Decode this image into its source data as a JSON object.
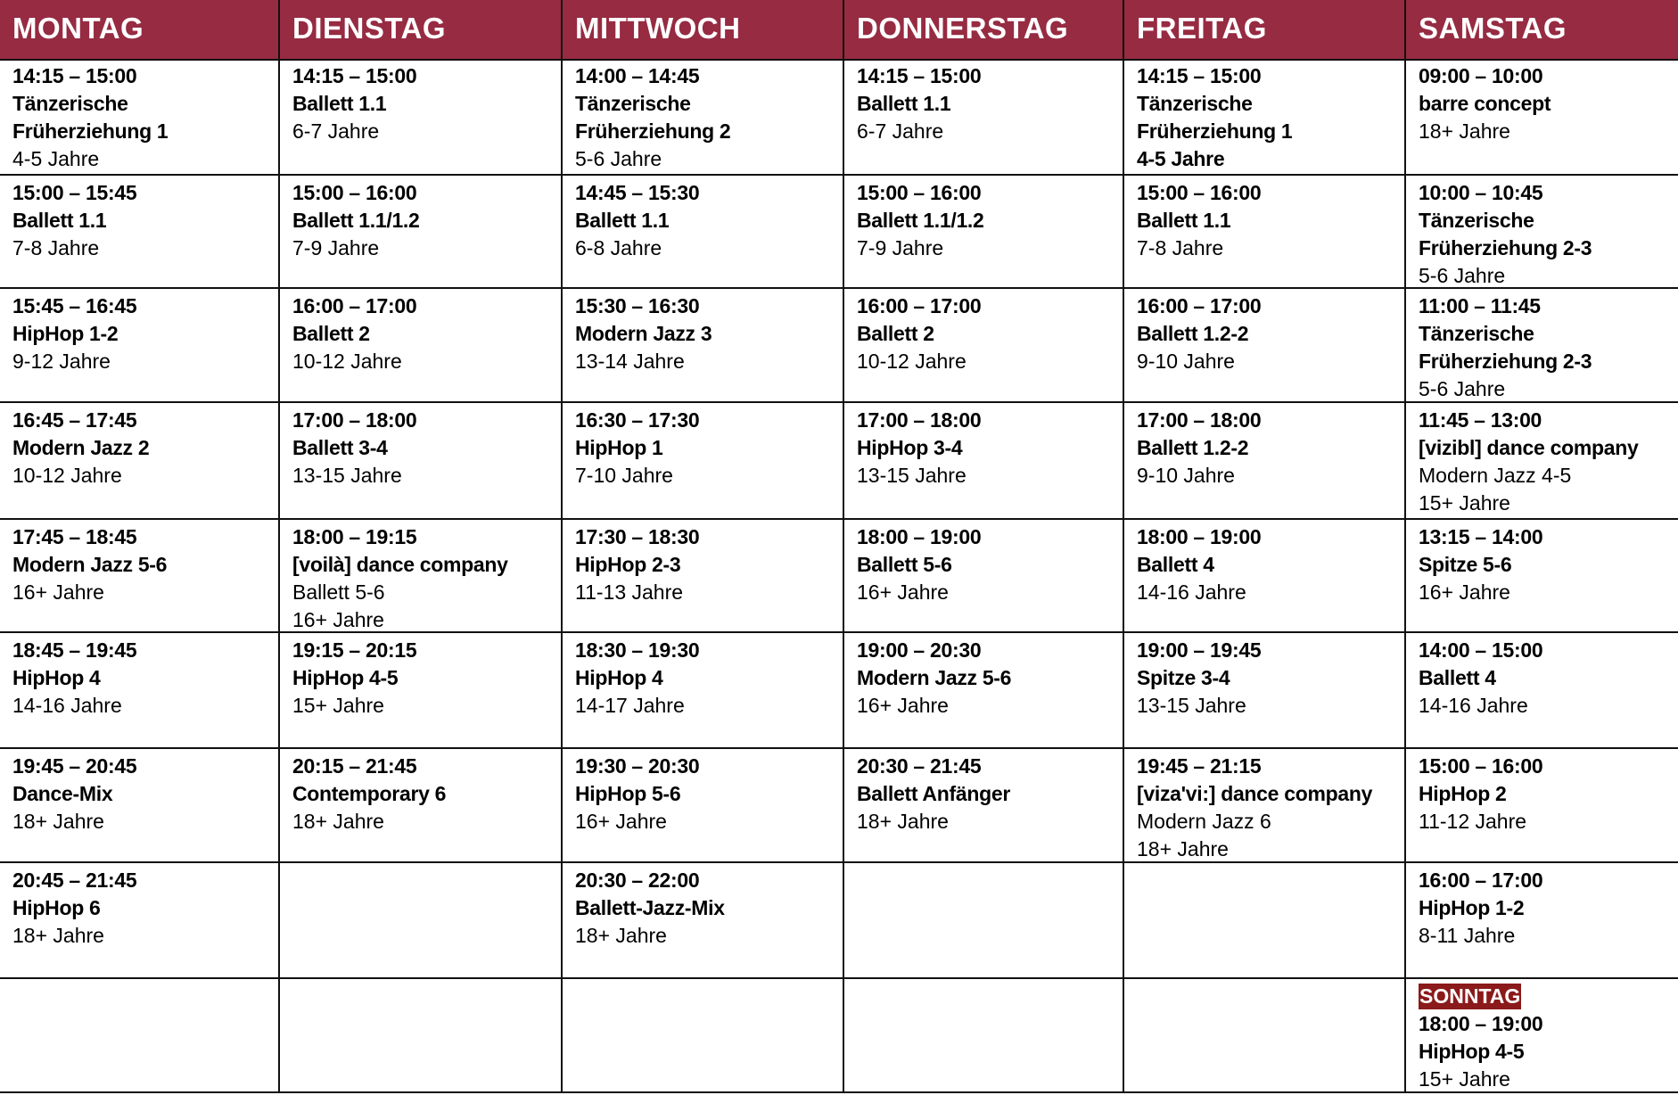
{
  "colors": {
    "header_bg": "#962b42",
    "sunday_bg": "#8b1a1a"
  },
  "days": [
    {
      "name": "MONTAG",
      "cells": [
        {
          "time": "14:15 – 15:00",
          "title": [
            "Tänzerische",
            "Früherziehung 1"
          ],
          "sub": [
            "4-5 Jahre"
          ]
        },
        {
          "time": "15:00 – 15:45",
          "title": [
            "Ballett 1.1"
          ],
          "sub": [
            "7-8 Jahre"
          ]
        },
        {
          "time": "15:45 – 16:45",
          "title": [
            "HipHop 1-2"
          ],
          "sub": [
            "9-12 Jahre"
          ]
        },
        {
          "time": "16:45 – 17:45",
          "title": [
            "Modern Jazz 2"
          ],
          "sub": [
            "10-12 Jahre"
          ]
        },
        {
          "time": "17:45 – 18:45",
          "title": [
            "Modern Jazz 5-6"
          ],
          "sub": [
            "16+ Jahre"
          ]
        },
        {
          "time": "18:45 – 19:45",
          "title": [
            "HipHop 4"
          ],
          "sub": [
            "14-16 Jahre"
          ]
        },
        {
          "time": "19:45 – 20:45",
          "title": [
            "Dance-Mix"
          ],
          "sub": [
            "18+ Jahre"
          ]
        },
        {
          "time": "20:45 – 21:45",
          "title": [
            "HipHop 6"
          ],
          "sub": [
            "18+ Jahre"
          ]
        },
        null
      ]
    },
    {
      "name": "DIENSTAG",
      "cells": [
        {
          "time": "14:15 – 15:00",
          "title": [
            "Ballett 1.1"
          ],
          "sub": [
            "6-7 Jahre"
          ]
        },
        {
          "time": "15:00 – 16:00",
          "title": [
            "Ballett 1.1/1.2"
          ],
          "sub": [
            "7-9 Jahre"
          ]
        },
        {
          "time": "16:00 – 17:00",
          "title": [
            "Ballett 2"
          ],
          "sub": [
            "10-12 Jahre"
          ]
        },
        {
          "time": "17:00 – 18:00",
          "title": [
            "Ballett 3-4"
          ],
          "sub": [
            "13-15 Jahre"
          ]
        },
        {
          "time": "18:00 – 19:15",
          "title": [
            "[voilà] dance company"
          ],
          "sub": [
            "Ballett 5-6",
            "16+ Jahre"
          ]
        },
        {
          "time": "19:15 – 20:15",
          "title": [
            "HipHop 4-5"
          ],
          "sub": [
            "15+ Jahre"
          ]
        },
        {
          "time": "20:15 – 21:45",
          "title": [
            "Contemporary 6"
          ],
          "sub": [
            "18+ Jahre"
          ]
        },
        null,
        null
      ]
    },
    {
      "name": "MITTWOCH",
      "cells": [
        {
          "time": "14:00 – 14:45",
          "title": [
            "Tänzerische",
            "Früherziehung 2"
          ],
          "sub": [
            "5-6 Jahre"
          ]
        },
        {
          "time": "14:45 – 15:30",
          "title": [
            "Ballett 1.1"
          ],
          "sub": [
            "6-8 Jahre"
          ]
        },
        {
          "time": "15:30 – 16:30",
          "title": [
            "Modern Jazz 3"
          ],
          "sub": [
            "13-14 Jahre"
          ]
        },
        {
          "time": "16:30 – 17:30",
          "title": [
            "HipHop 1"
          ],
          "sub": [
            "7-10 Jahre"
          ]
        },
        {
          "time": "17:30 – 18:30",
          "title": [
            "HipHop 2-3"
          ],
          "sub": [
            "11-13 Jahre"
          ]
        },
        {
          "time": "18:30 – 19:30",
          "title": [
            "HipHop 4"
          ],
          "sub": [
            "14-17 Jahre"
          ]
        },
        {
          "time": "19:30 – 20:30",
          "title": [
            "HipHop 5-6"
          ],
          "sub": [
            "16+ Jahre"
          ]
        },
        {
          "time": "20:30 – 22:00",
          "title": [
            "Ballett-Jazz-Mix"
          ],
          "sub": [
            "18+ Jahre"
          ]
        },
        null
      ]
    },
    {
      "name": "DONNERSTAG",
      "cells": [
        {
          "time": "14:15 – 15:00",
          "title": [
            "Ballett 1.1"
          ],
          "sub": [
            "6-7 Jahre"
          ]
        },
        {
          "time": "15:00 – 16:00",
          "title": [
            "Ballett 1.1/1.2"
          ],
          "sub": [
            "7-9 Jahre"
          ]
        },
        {
          "time": "16:00 – 17:00",
          "title": [
            "Ballett 2"
          ],
          "sub": [
            "10-12 Jahre"
          ]
        },
        {
          "time": "17:00 – 18:00",
          "title": [
            "HipHop 3-4"
          ],
          "sub": [
            "13-15 Jahre"
          ]
        },
        {
          "time": "18:00 – 19:00",
          "title": [
            "Ballett 5-6"
          ],
          "sub": [
            "16+ Jahre"
          ]
        },
        {
          "time": "19:00 – 20:30",
          "title": [
            "Modern Jazz 5-6"
          ],
          "sub": [
            "16+ Jahre"
          ]
        },
        {
          "time": "20:30 – 21:45",
          "title": [
            "Ballett Anfänger"
          ],
          "sub": [
            "18+ Jahre"
          ]
        },
        null,
        null
      ]
    },
    {
      "name": "FREITAG",
      "cells": [
        {
          "time": "14:15 – 15:00",
          "title": [
            "Tänzerische",
            "Früherziehung 1",
            "4-5 Jahre"
          ],
          "sub": []
        },
        {
          "time": "15:00 – 16:00",
          "title": [
            "Ballett 1.1"
          ],
          "sub": [
            "7-8 Jahre"
          ]
        },
        {
          "time": "16:00 – 17:00",
          "title": [
            "Ballett 1.2-2"
          ],
          "sub": [
            "9-10 Jahre"
          ]
        },
        {
          "time": "17:00 – 18:00",
          "title": [
            "Ballett 1.2-2"
          ],
          "sub": [
            "9-10 Jahre"
          ]
        },
        {
          "time": "18:00 – 19:00",
          "title": [
            "Ballett 4"
          ],
          "sub": [
            "14-16 Jahre"
          ]
        },
        {
          "time": "19:00 – 19:45",
          "title": [
            "Spitze 3-4"
          ],
          "sub": [
            "13-15 Jahre"
          ]
        },
        {
          "time": "19:45 – 21:15",
          "title": [
            "[viza'vi:] dance company"
          ],
          "sub": [
            "Modern Jazz 6",
            "18+ Jahre"
          ]
        },
        null,
        null
      ]
    },
    {
      "name": "SAMSTAG",
      "cells": [
        {
          "time": "09:00 – 10:00",
          "title": [
            "barre concept"
          ],
          "sub": [
            "18+ Jahre"
          ]
        },
        {
          "time": "10:00 – 10:45",
          "title": [
            "Tänzerische",
            "Früherziehung 2-3"
          ],
          "sub": [
            "5-6 Jahre"
          ]
        },
        {
          "time": "11:00 – 11:45",
          "title": [
            "Tänzerische",
            "Früherziehung 2-3"
          ],
          "sub": [
            "5-6 Jahre"
          ]
        },
        {
          "time": "11:45 – 13:00",
          "title": [
            "[vizibl] dance company"
          ],
          "sub": [
            "Modern Jazz 4-5",
            "15+ Jahre"
          ]
        },
        {
          "time": "13:15 – 14:00",
          "title": [
            "Spitze 5-6"
          ],
          "sub": [
            "16+ Jahre"
          ]
        },
        {
          "time": "14:00 – 15:00",
          "title": [
            "Ballett 4"
          ],
          "sub": [
            "14-16 Jahre"
          ]
        },
        {
          "time": "15:00 – 16:00",
          "title": [
            "HipHop 2"
          ],
          "sub": [
            "11-12 Jahre"
          ]
        },
        {
          "time": "16:00 – 17:00",
          "title": [
            "HipHop 1-2"
          ],
          "sub": [
            "8-11 Jahre"
          ]
        },
        {
          "label": "SONNTAG",
          "time": "18:00 – 19:00",
          "title": [
            "HipHop 4-5"
          ],
          "sub": [
            "15+ Jahre"
          ]
        }
      ]
    }
  ]
}
